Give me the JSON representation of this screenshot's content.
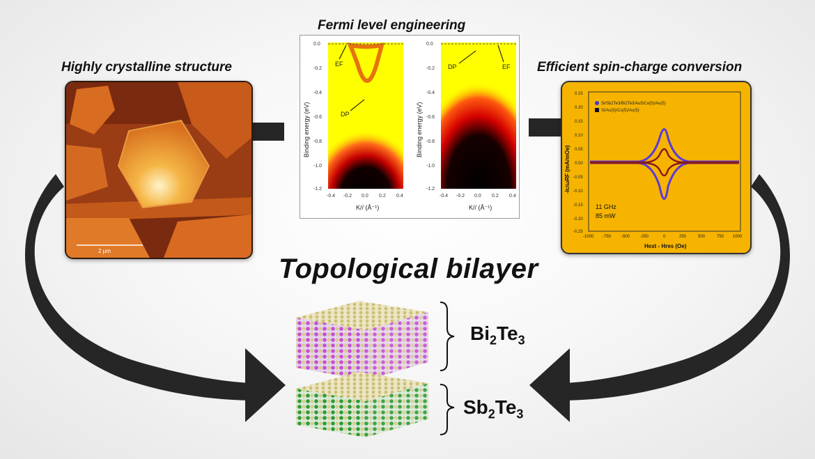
{
  "titles": {
    "left": "Highly crystalline structure",
    "middle": "Fermi level engineering",
    "right": "Efficient spin-charge conversion",
    "main": "Topological bilayer"
  },
  "afm": {
    "scale_bar": "2 μm"
  },
  "arpes": {
    "ylabel": "Binding energy (eV)",
    "xlabel": "K// (Å⁻¹)",
    "yticks": [
      "0.0",
      "-0.2",
      "-0.4",
      "-0.6",
      "-0.8",
      "-1.0",
      "-1.2"
    ],
    "xticks": [
      "-0.4",
      "-0.2",
      "0.0",
      "0.2",
      "0.4"
    ],
    "left_labels": {
      "ef": "EF",
      "dp": "DP"
    },
    "right_labels": {
      "ef": "EF",
      "dp": "DP"
    }
  },
  "fmr": {
    "ylabel": "-Ic/ωRF (mA/mOe)",
    "xlabel": "Hext - Hres (Oe)",
    "legend": [
      {
        "label": "Si/Sb2Te3/Bi2Te3/Au5/Co(5)/Au(5)",
        "color": "#3b3bd6"
      },
      {
        "label": "Si/Au(5)/Co(5)/Au(5)",
        "color": "#111111"
      }
    ],
    "conditions": [
      "11 GHz",
      "85 mW"
    ],
    "yticks": [
      "0.25",
      "0.20",
      "0.15",
      "0.10",
      "0.05",
      "0.00",
      "-0.05",
      "-0.10",
      "-0.15",
      "-0.20",
      "-0.25"
    ],
    "xticks": [
      "-1000",
      "-750",
      "-500",
      "-250",
      "0",
      "250",
      "500",
      "750",
      "1000"
    ]
  },
  "layers": {
    "top": "Bi2Te3",
    "bottom": "Sb2Te3",
    "top_main": "Bi",
    "top_sub1": "2",
    "top_mid": "Te",
    "top_sub2": "3",
    "bottom_main": "Sb",
    "bottom_sub1": "2",
    "bottom_mid": "Te",
    "bottom_sub2": "3"
  },
  "colors": {
    "arrow": "#262626",
    "fmr_bg": "#f6b400",
    "bi_atom": "#c64fd2",
    "sb_atom": "#2e9a3a",
    "te_atom": "#d6cc8a"
  }
}
